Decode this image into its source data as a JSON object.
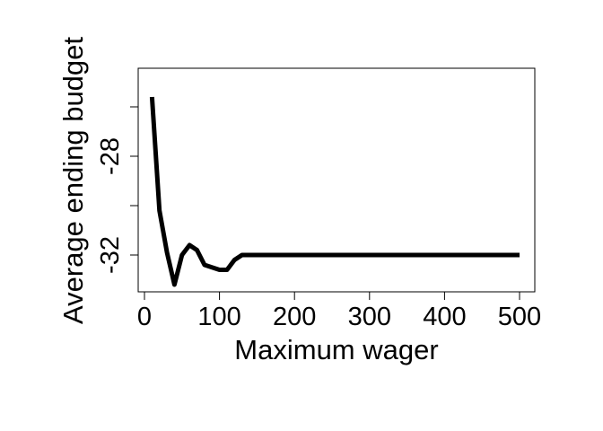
{
  "chart_data": {
    "type": "line",
    "title": "",
    "xlabel": "Maximum wager",
    "ylabel": "Average ending budget",
    "xlim": [
      0,
      500
    ],
    "ylim": [
      -33.2,
      -24.8
    ],
    "x_ticks": [
      0,
      100,
      200,
      300,
      400,
      500
    ],
    "x_tick_labels": [
      "0",
      "100",
      "200",
      "300",
      "400",
      "500"
    ],
    "y_ticks": [
      -32,
      -30,
      -28,
      -26
    ],
    "y_tick_labels": [
      "-32",
      "",
      "-28",
      ""
    ],
    "grid": false,
    "legend": "none",
    "line_color": "#000000",
    "series": [
      {
        "x": [
          10,
          20,
          30,
          40,
          50,
          60,
          70,
          80,
          90,
          100,
          110,
          120,
          130,
          140,
          150,
          160,
          170,
          180,
          190,
          200,
          210,
          220,
          230,
          240,
          250,
          260,
          270,
          280,
          290,
          300,
          310,
          320,
          330,
          340,
          350,
          360,
          370,
          380,
          390,
          400,
          410,
          420,
          430,
          440,
          450,
          460,
          470,
          480,
          490,
          500
        ],
        "values": [
          -25.6,
          -30.2,
          -31.9,
          -33.2,
          -32.0,
          -31.6,
          -31.8,
          -32.4,
          -32.5,
          -32.6,
          -32.6,
          -32.2,
          -32.0,
          -32.0,
          -32.0,
          -32.0,
          -32.0,
          -32.0,
          -32.0,
          -32.0,
          -32.0,
          -32.0,
          -32.0,
          -32.0,
          -32.0,
          -32.0,
          -32.0,
          -32.0,
          -32.0,
          -32.0,
          -32.0,
          -32.0,
          -32.0,
          -32.0,
          -32.0,
          -32.0,
          -32.0,
          -32.0,
          -32.0,
          -32.0,
          -32.0,
          -32.0,
          -32.0,
          -32.0,
          -32.0,
          -32.0,
          -32.0,
          -32.0,
          -32.0,
          -32.0
        ]
      }
    ]
  }
}
